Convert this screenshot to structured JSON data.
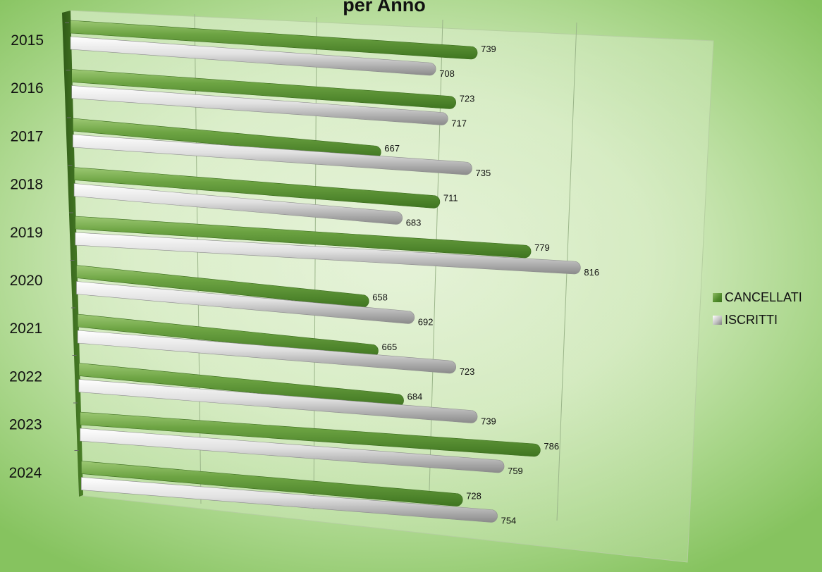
{
  "chart_data": {
    "type": "bar",
    "orientation": "horizontal",
    "title": "per Anno",
    "categories": [
      "2015",
      "2016",
      "2017",
      "2018",
      "2019",
      "2020",
      "2021",
      "2022",
      "2023",
      "2024"
    ],
    "series": [
      {
        "name": "CANCELLATI",
        "color": "#4f8a2a",
        "values": [
          739,
          723,
          667,
          711,
          779,
          658,
          665,
          684,
          786,
          728
        ]
      },
      {
        "name": "ISCRITTI",
        "color": "#c9c9c9",
        "values": [
          708,
          717,
          735,
          683,
          816,
          692,
          723,
          739,
          759,
          754
        ]
      }
    ],
    "legend_position": "right",
    "grid": true
  }
}
